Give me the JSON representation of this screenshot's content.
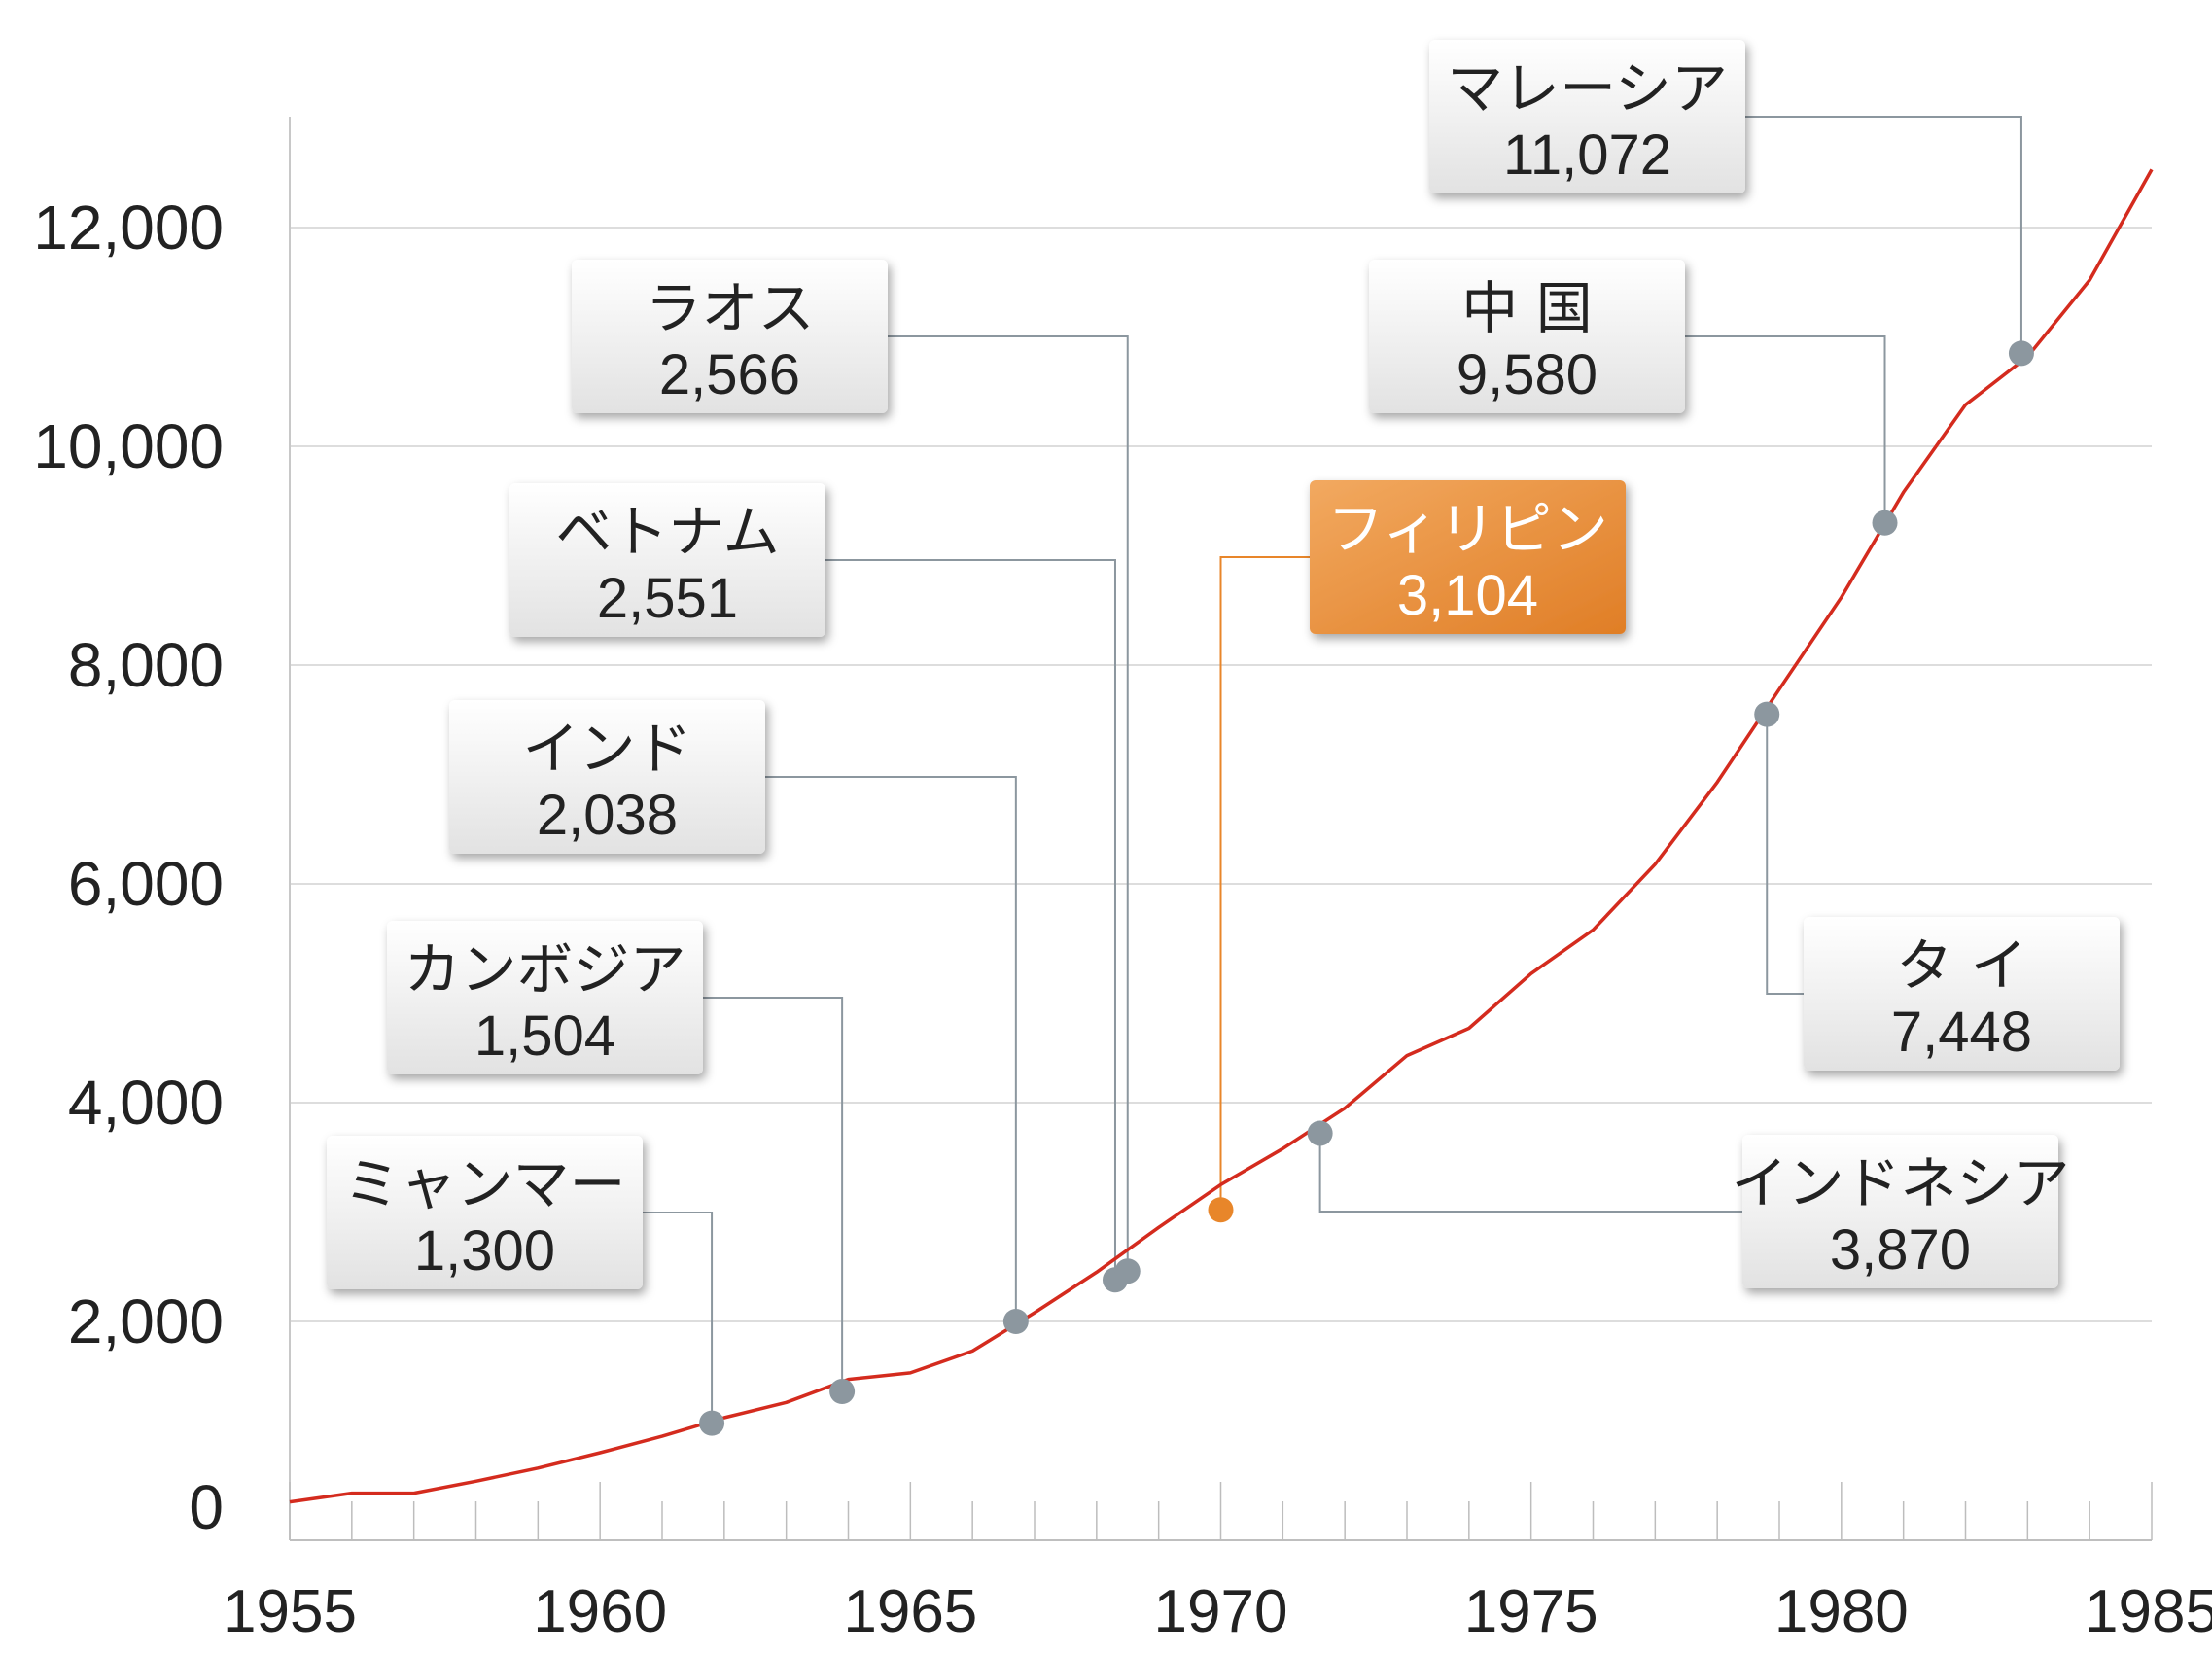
{
  "chart_data": {
    "type": "line",
    "title": "",
    "xlabel": "",
    "ylabel": "",
    "xlim": [
      1955,
      1985
    ],
    "ylim": [
      0,
      13000
    ],
    "x_ticks": [
      1955,
      1960,
      1965,
      1970,
      1975,
      1980,
      1985
    ],
    "x_tick_labels": [
      "1955",
      "1960",
      "1965",
      "1970",
      "1975",
      "1980",
      "1985"
    ],
    "y_ticks": [
      0,
      2000,
      4000,
      6000,
      8000,
      10000,
      12000
    ],
    "y_tick_labels": [
      "0",
      "2,000",
      "4,000",
      "6,000",
      "8,000",
      "10,000",
      "12,000"
    ],
    "grid": true,
    "series": [
      {
        "color": "#d42b1e",
        "x": [
          1955,
          1956,
          1957,
          1958,
          1959,
          1960,
          1961,
          1962,
          1963,
          1964,
          1965,
          1966,
          1967,
          1968,
          1969,
          1970,
          1971,
          1972,
          1973,
          1974,
          1975,
          1976,
          1977,
          1978,
          1979,
          1980,
          1981,
          1982,
          1983,
          1984,
          1985
        ],
        "y": [
          350,
          430,
          430,
          540,
          660,
          800,
          950,
          1120,
          1260,
          1470,
          1530,
          1730,
          2080,
          2450,
          2860,
          3250,
          3580,
          3950,
          4430,
          4680,
          5180,
          5580,
          6180,
          6930,
          7780,
          8620,
          9580,
          10380,
          10820,
          11520,
          12530
        ]
      }
    ],
    "annotations": [
      {
        "label": "ミャンマー",
        "value": "1,300",
        "x": 1961.8,
        "y": 1070,
        "highlight": false
      },
      {
        "label": "カンボジア",
        "value": "1,504",
        "x": 1963.9,
        "y": 1360,
        "highlight": false
      },
      {
        "label": "インド",
        "value": "2,038",
        "x": 1966.7,
        "y": 2000,
        "highlight": false
      },
      {
        "label": "ベトナム",
        "value": "2,551",
        "x": 1968.3,
        "y": 2380,
        "highlight": false
      },
      {
        "label": "ラオス",
        "value": "2,566",
        "x": 1968.5,
        "y": 2460,
        "highlight": false
      },
      {
        "label": "フィリピン",
        "value": "3,104",
        "x": 1970.0,
        "y": 3020,
        "highlight": true
      },
      {
        "label": "インドネシア",
        "value": "3,870",
        "x": 1971.6,
        "y": 3720,
        "highlight": false
      },
      {
        "label": "タ イ",
        "value": "7,448",
        "x": 1978.8,
        "y": 7550,
        "highlight": false
      },
      {
        "label": "中 国",
        "value": "9,580",
        "x": 1980.7,
        "y": 9300,
        "highlight": false
      },
      {
        "label": "マレーシア",
        "value": "11,072",
        "x": 1982.9,
        "y": 10850,
        "highlight": false
      }
    ],
    "colors": {
      "line": "#d42b1e",
      "marker": "#8c979f",
      "highlight": "#e8862a",
      "leader": "#8c979f",
      "grid": "#d2d2d2"
    }
  }
}
